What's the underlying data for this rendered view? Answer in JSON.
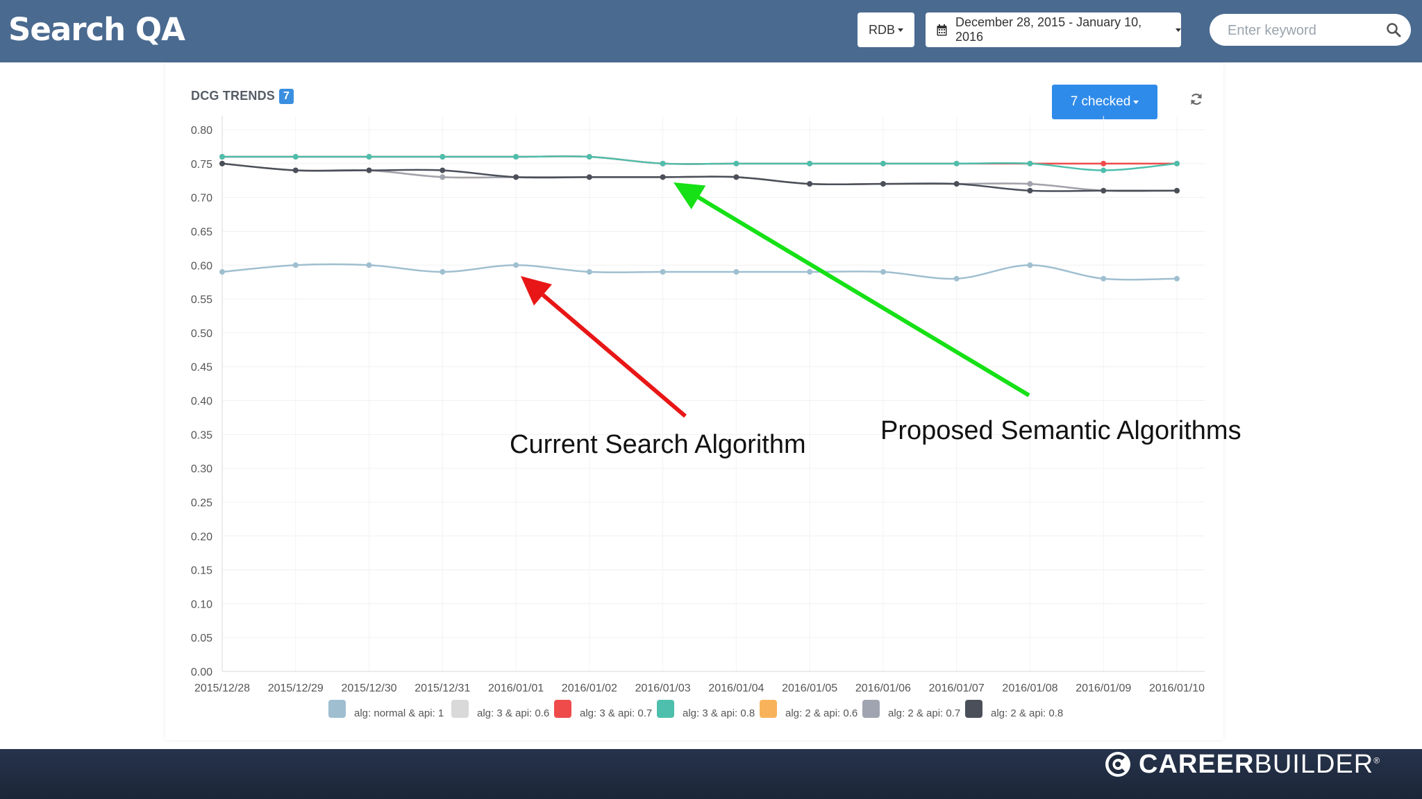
{
  "header": {
    "title": "Search QA",
    "db_select": "RDB",
    "date_range": "December 28, 2015 - January 10, 2016",
    "search_placeholder": "Enter keyword"
  },
  "panel": {
    "title": "DCG TRENDS",
    "badge": "7",
    "checked_label": "7 checked"
  },
  "annotations": {
    "current": "Current Search Algorithm",
    "proposed": "Proposed Semantic Algorithms"
  },
  "footer": {
    "brand_bold": "CAREER",
    "brand_light": "BUILDER",
    "trademark": "®"
  },
  "colors": {
    "header_bg": "#4a6a90",
    "primary_button": "#2f8bea",
    "red_arrow": "#e81616",
    "green_arrow": "#16e016"
  },
  "chart_data": {
    "type": "line",
    "title": "DCG TRENDS",
    "ylim": [
      0,
      0.8
    ],
    "yticks": [
      "0.00",
      "0.05",
      "0.10",
      "0.15",
      "0.20",
      "0.25",
      "0.30",
      "0.35",
      "0.40",
      "0.45",
      "0.50",
      "0.55",
      "0.60",
      "0.65",
      "0.70",
      "0.75",
      "0.80"
    ],
    "x": [
      "2015/12/28",
      "2015/12/29",
      "2015/12/30",
      "2015/12/31",
      "2016/01/01",
      "2016/01/02",
      "2016/01/03",
      "2016/01/04",
      "2016/01/05",
      "2016/01/06",
      "2016/01/07",
      "2016/01/08",
      "2016/01/09",
      "2016/01/10"
    ],
    "legend_position": "bottom",
    "series": [
      {
        "name": "alg: normal & api: 1",
        "color": "#9fbfd0",
        "values": [
          0.59,
          0.6,
          0.6,
          0.59,
          0.6,
          0.59,
          0.59,
          0.59,
          0.59,
          0.59,
          0.58,
          0.6,
          0.58,
          0.58
        ]
      },
      {
        "name": "alg: 3 & api: 0.6",
        "color": "#d9d9d9",
        "values": [
          0.76,
          0.76,
          0.76,
          0.76,
          0.76,
          0.76,
          0.75,
          0.75,
          0.75,
          0.75,
          0.75,
          0.75,
          0.75,
          0.75
        ]
      },
      {
        "name": "alg: 3 & api: 0.7",
        "color": "#ef4b4b",
        "values": [
          0.76,
          0.76,
          0.76,
          0.76,
          0.76,
          0.76,
          0.75,
          0.75,
          0.75,
          0.75,
          0.75,
          0.75,
          0.75,
          0.75
        ]
      },
      {
        "name": "alg: 3 & api: 0.8",
        "color": "#4dbfac",
        "values": [
          0.76,
          0.76,
          0.76,
          0.76,
          0.76,
          0.76,
          0.75,
          0.75,
          0.75,
          0.75,
          0.75,
          0.75,
          0.74,
          0.75
        ]
      },
      {
        "name": "alg: 2 & api: 0.6",
        "color": "#f8b35a",
        "values": [
          0.75,
          0.74,
          0.74,
          0.73,
          0.73,
          0.73,
          0.73,
          0.73,
          0.72,
          0.72,
          0.72,
          0.72,
          0.71,
          0.71
        ]
      },
      {
        "name": "alg: 2 & api: 0.7",
        "color": "#a0a4b0",
        "values": [
          0.75,
          0.74,
          0.74,
          0.73,
          0.73,
          0.73,
          0.73,
          0.73,
          0.72,
          0.72,
          0.72,
          0.72,
          0.71,
          0.71
        ]
      },
      {
        "name": "alg: 2 & api: 0.8",
        "color": "#4a4f5a",
        "values": [
          0.75,
          0.74,
          0.74,
          0.74,
          0.73,
          0.73,
          0.73,
          0.73,
          0.72,
          0.72,
          0.72,
          0.71,
          0.71,
          0.71
        ]
      }
    ]
  }
}
